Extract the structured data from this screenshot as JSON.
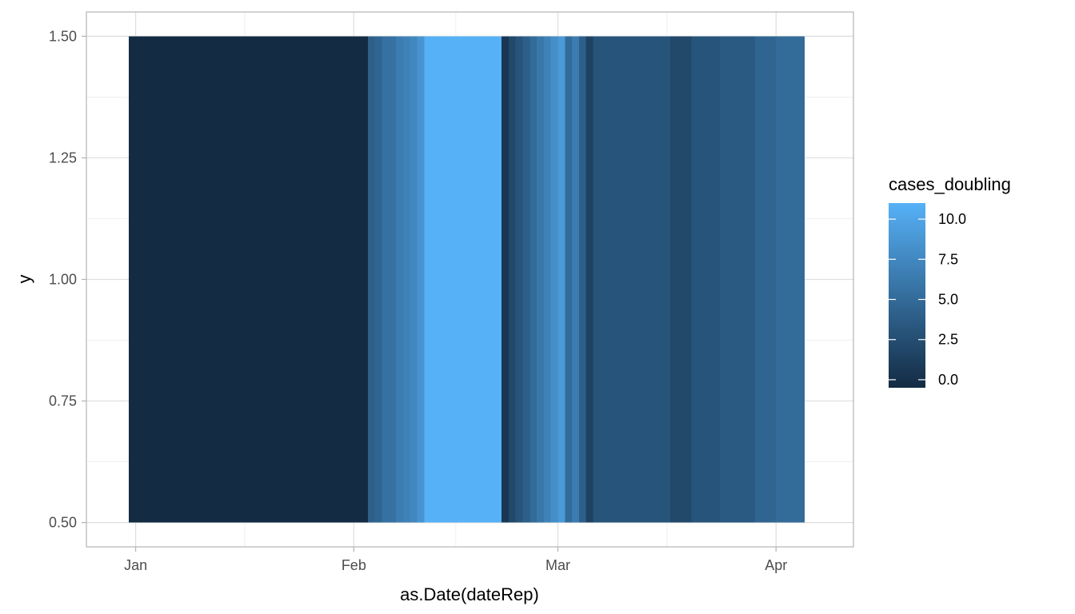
{
  "chart_data": {
    "type": "heatmap",
    "title": "",
    "xlabel": "as.Date(dateRep)",
    "ylabel": "y",
    "x_ticks": [
      {
        "date": "2020-01-01",
        "label": "Jan"
      },
      {
        "date": "2020-02-01",
        "label": "Feb"
      },
      {
        "date": "2020-03-01",
        "label": "Mar"
      },
      {
        "date": "2020-04-01",
        "label": "Apr"
      }
    ],
    "y_ticks": [
      {
        "value": 0.5,
        "label": "0.50"
      },
      {
        "value": 0.75,
        "label": "0.75"
      },
      {
        "value": 1.0,
        "label": "1.00"
      },
      {
        "value": 1.25,
        "label": "1.25"
      },
      {
        "value": 1.5,
        "label": "1.50"
      }
    ],
    "xlim": [
      "2019-12-25",
      "2020-04-12"
    ],
    "ylim": [
      0.45,
      1.55
    ],
    "tile_y": 1,
    "tile_height": 1,
    "grid": true,
    "legend": {
      "title": "cases_doubling",
      "position": "right",
      "range": [
        -0.5,
        11
      ],
      "breaks": [
        {
          "value": 0,
          "label": "0.0"
        },
        {
          "value": 2.5,
          "label": "2.5"
        },
        {
          "value": 5,
          "label": "5.0"
        },
        {
          "value": 7.5,
          "label": "7.5"
        },
        {
          "value": 10,
          "label": "10.0"
        }
      ],
      "low_color": "#132B43",
      "high_color": "#56B1F7"
    },
    "series": [
      {
        "start": "2019-12-31",
        "end": "2020-02-03",
        "value": -0.5
      },
      {
        "start": "2020-02-03",
        "end": "2020-02-04",
        "value": 4
      },
      {
        "start": "2020-02-04",
        "end": "2020-02-05",
        "value": 4.5
      },
      {
        "start": "2020-02-05",
        "end": "2020-02-07",
        "value": 5.5
      },
      {
        "start": "2020-02-07",
        "end": "2020-02-08",
        "value": 6.5
      },
      {
        "start": "2020-02-08",
        "end": "2020-02-09",
        "value": 7
      },
      {
        "start": "2020-02-09",
        "end": "2020-02-10",
        "value": 7.5
      },
      {
        "start": "2020-02-10",
        "end": "2020-02-11",
        "value": 8.5
      },
      {
        "start": "2020-02-11",
        "end": "2020-02-22",
        "value": 11
      },
      {
        "start": "2020-02-22",
        "end": "2020-02-23",
        "value": 0.5
      },
      {
        "start": "2020-02-23",
        "end": "2020-02-24",
        "value": 2
      },
      {
        "start": "2020-02-24",
        "end": "2020-02-25",
        "value": 3
      },
      {
        "start": "2020-02-25",
        "end": "2020-02-26",
        "value": 4
      },
      {
        "start": "2020-02-26",
        "end": "2020-02-27",
        "value": 5
      },
      {
        "start": "2020-02-27",
        "end": "2020-02-28",
        "value": 6
      },
      {
        "start": "2020-02-28",
        "end": "2020-02-29",
        "value": 7
      },
      {
        "start": "2020-02-29",
        "end": "2020-03-01",
        "value": 8
      },
      {
        "start": "2020-03-01",
        "end": "2020-03-02",
        "value": 9
      },
      {
        "start": "2020-03-02",
        "end": "2020-03-03",
        "value": 5
      },
      {
        "start": "2020-03-03",
        "end": "2020-03-04",
        "value": 6.5
      },
      {
        "start": "2020-03-04",
        "end": "2020-03-05",
        "value": 4
      },
      {
        "start": "2020-03-05",
        "end": "2020-03-06",
        "value": 1.5
      },
      {
        "start": "2020-03-06",
        "end": "2020-03-17",
        "value": 3
      },
      {
        "start": "2020-03-17",
        "end": "2020-03-20",
        "value": 2
      },
      {
        "start": "2020-03-20",
        "end": "2020-03-24",
        "value": 3
      },
      {
        "start": "2020-03-24",
        "end": "2020-03-29",
        "value": 3.5
      },
      {
        "start": "2020-03-29",
        "end": "2020-04-01",
        "value": 4.5
      },
      {
        "start": "2020-04-01",
        "end": "2020-04-05",
        "value": 5
      }
    ]
  }
}
